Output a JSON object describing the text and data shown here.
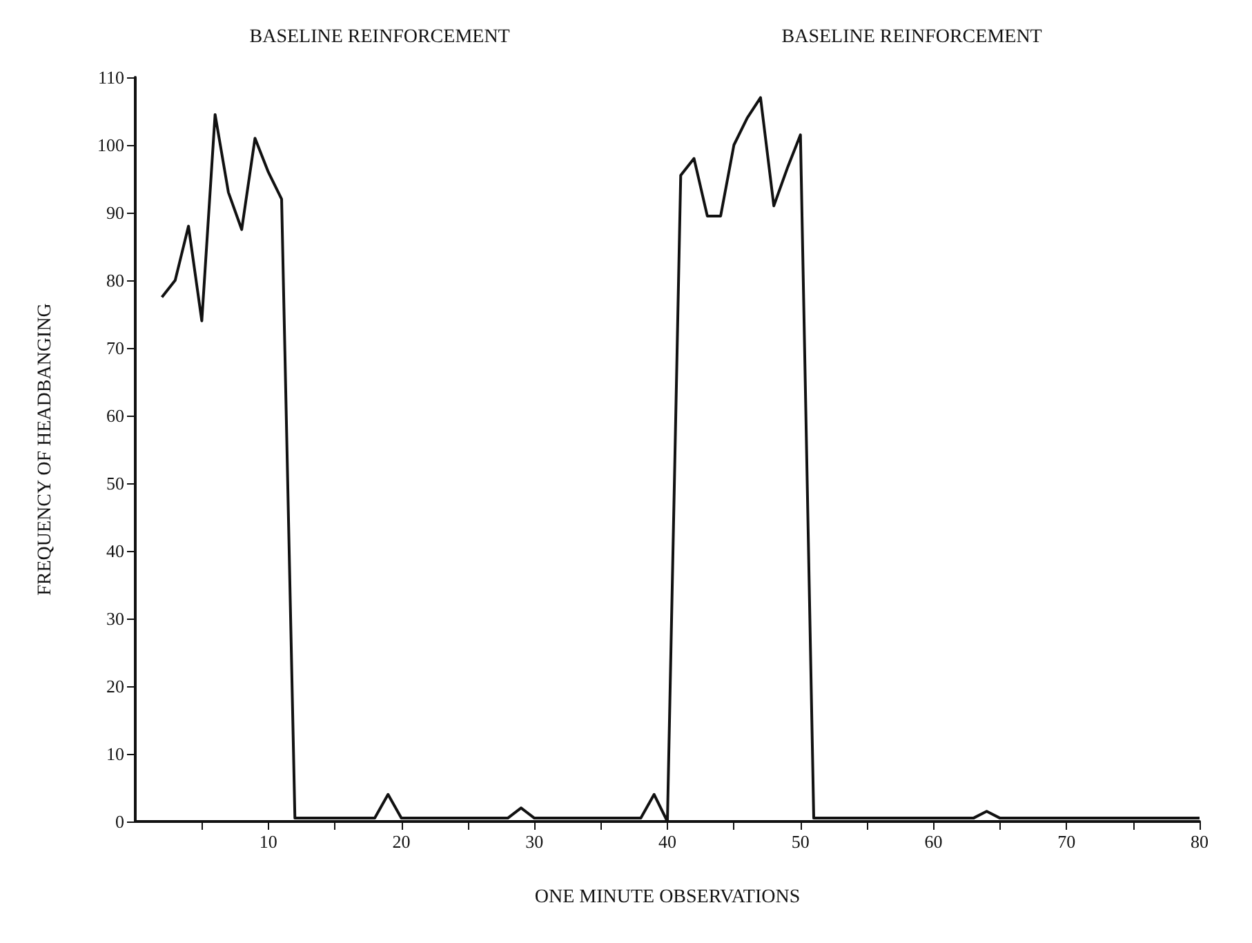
{
  "chart_data": {
    "type": "line",
    "xlabel": "ONE MINUTE OBSERVATIONS",
    "ylabel": "FREQUENCY OF HEADBANGING",
    "annotations": [
      "BASELINE REINFORCEMENT",
      "BASELINE REINFORCEMENT"
    ],
    "x": [
      2,
      3,
      4,
      5,
      6,
      7,
      8,
      9,
      10,
      11,
      12,
      13,
      14,
      15,
      16,
      17,
      18,
      19,
      20,
      21,
      22,
      23,
      24,
      25,
      26,
      27,
      28,
      29,
      30,
      31,
      32,
      33,
      34,
      35,
      36,
      37,
      38,
      39,
      40,
      41,
      42,
      43,
      44,
      45,
      46,
      47,
      48,
      49,
      50,
      51,
      52,
      53,
      54,
      55,
      56,
      57,
      58,
      59,
      60,
      61,
      62,
      63,
      64,
      65,
      66,
      67,
      68,
      69,
      70,
      71,
      72,
      73,
      74,
      75,
      76,
      77,
      78,
      79,
      80
    ],
    "series": [
      {
        "color": "#111111",
        "values": [
          77.5,
          80,
          88,
          74,
          104.5,
          93,
          87.5,
          101,
          96,
          92,
          0.5,
          0.5,
          0.5,
          0.5,
          0.5,
          0.5,
          0.5,
          4,
          0.5,
          0.5,
          0.5,
          0.5,
          0.5,
          0.5,
          0.5,
          0.5,
          0.5,
          2,
          0.5,
          0.5,
          0.5,
          0.5,
          0.5,
          0.5,
          0.5,
          0.5,
          0.5,
          4,
          0,
          95.5,
          98,
          89.5,
          89.5,
          100,
          104,
          107,
          91,
          96.5,
          101.5,
          0.5,
          0.5,
          0.5,
          0.5,
          0.5,
          0.5,
          0.5,
          0.5,
          0.5,
          0.5,
          0.5,
          0.5,
          0.5,
          1.5,
          0.5,
          0.5,
          0.5,
          0.5,
          0.5,
          0.5,
          0.5,
          0.5,
          0.5,
          0.5,
          0.5,
          0.5,
          0.5,
          0.5,
          0.5,
          0.5
        ]
      }
    ],
    "xlim": [
      0,
      80
    ],
    "xticks": [
      {
        "value": 5,
        "label": null
      },
      10,
      {
        "value": 15,
        "label": null
      },
      20,
      {
        "value": 25,
        "label": null
      },
      30,
      {
        "value": 35,
        "label": null
      },
      40,
      {
        "value": 45,
        "label": null
      },
      50,
      {
        "value": 55,
        "label": null
      },
      60,
      {
        "value": 65,
        "label": null
      },
      70,
      {
        "value": 75,
        "label": null
      },
      80
    ],
    "ylim": [
      0,
      110
    ],
    "yticks": [
      0,
      10,
      20,
      30,
      40,
      50,
      60,
      70,
      80,
      90,
      100,
      110
    ],
    "grid": false,
    "marker": "none",
    "line_style": "solid"
  }
}
